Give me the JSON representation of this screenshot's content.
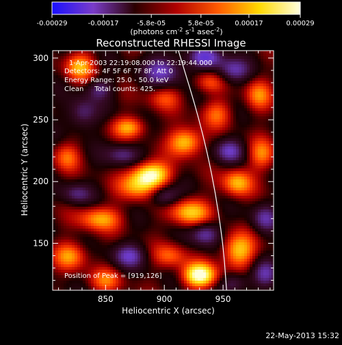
{
  "colorbar": {
    "tick_labels": [
      "-0.00029",
      "-0.00017",
      "-5.8e-05",
      "5.8e-05",
      "0.00017",
      "0.00029"
    ],
    "tick_values": [
      -0.00029,
      -0.00017,
      -5.8e-05,
      5.8e-05,
      0.00017,
      0.00029
    ],
    "range": [
      -0.00029,
      0.00029
    ],
    "units_prefix": "(photons cm",
    "units_sup1": "-2",
    "units_mid": " s",
    "units_sup2": "-1",
    "units_mid2": " asec",
    "units_sup3": "-2",
    "units_suffix": ")",
    "colors": [
      "#1a10ff",
      "#7a3cc8",
      "#2a0000",
      "#b00000",
      "#ff5a00",
      "#ffd800",
      "#ffffe0"
    ]
  },
  "annotations": {
    "line1": "1-Apr-2003 22:19:08.000 to 22:19:44.000",
    "line2": "Detectors: 4F 5F 6F 7F 8F, Att 0",
    "line3": "Energy Range: 25.0 - 50.0 keV",
    "line4": "Clean     Total counts: 425.",
    "peak": "Position of Peak = [919,126]"
  },
  "footer": {
    "timestamp": "22-May-2013 15:32"
  },
  "chart_data": {
    "type": "heatmap",
    "title": "Reconstructed RHESSI Image",
    "xlabel": "Heliocentric X (arcsec)",
    "ylabel": "Heliocentric Y (arcsec)",
    "xlim": [
      805,
      993
    ],
    "ylim": [
      112,
      306
    ],
    "x_ticks": [
      850,
      900,
      950
    ],
    "y_ticks": [
      150,
      200,
      250,
      300
    ],
    "peak_position": [
      919,
      126
    ],
    "limb_curve": [
      [
        912,
        306
      ],
      [
        930,
        250
      ],
      [
        942,
        200
      ],
      [
        950,
        150
      ],
      [
        953,
        112
      ]
    ],
    "blobs": [
      {
        "x": 889,
        "y": 206,
        "v": 0.85,
        "sx": 11,
        "sy": 7
      },
      {
        "x": 878,
        "y": 196,
        "v": 0.55,
        "sx": 12,
        "sy": 8
      },
      {
        "x": 918,
        "y": 232,
        "v": 0.7,
        "sx": 10,
        "sy": 8
      },
      {
        "x": 930,
        "y": 124,
        "v": 0.95,
        "sx": 10,
        "sy": 7
      },
      {
        "x": 922,
        "y": 175,
        "v": 0.65,
        "sx": 12,
        "sy": 8
      },
      {
        "x": 962,
        "y": 199,
        "v": 0.6,
        "sx": 9,
        "sy": 8
      },
      {
        "x": 963,
        "y": 144,
        "v": 0.65,
        "sx": 10,
        "sy": 10
      },
      {
        "x": 845,
        "y": 170,
        "v": 0.55,
        "sx": 13,
        "sy": 7
      },
      {
        "x": 820,
        "y": 140,
        "v": 0.5,
        "sx": 10,
        "sy": 8
      },
      {
        "x": 870,
        "y": 244,
        "v": 0.55,
        "sx": 10,
        "sy": 6
      },
      {
        "x": 828,
        "y": 293,
        "v": 0.55,
        "sx": 9,
        "sy": 8
      },
      {
        "x": 945,
        "y": 255,
        "v": 0.4,
        "sx": 9,
        "sy": 8
      },
      {
        "x": 980,
        "y": 270,
        "v": 0.45,
        "sx": 8,
        "sy": 9
      },
      {
        "x": 938,
        "y": 280,
        "v": 0.35,
        "sx": 9,
        "sy": 6
      },
      {
        "x": 850,
        "y": 120,
        "v": 0.4,
        "sx": 10,
        "sy": 7
      },
      {
        "x": 905,
        "y": 140,
        "v": 0.4,
        "sx": 10,
        "sy": 7
      },
      {
        "x": 983,
        "y": 222,
        "v": 0.45,
        "sx": 8,
        "sy": 9
      },
      {
        "x": 817,
        "y": 220,
        "v": 0.4,
        "sx": 8,
        "sy": 8
      },
      {
        "x": 900,
        "y": 268,
        "v": 0.35,
        "sx": 10,
        "sy": 7
      },
      {
        "x": 900,
        "y": 290,
        "v": -0.5,
        "sx": 12,
        "sy": 9
      },
      {
        "x": 935,
        "y": 300,
        "v": -0.55,
        "sx": 10,
        "sy": 6
      },
      {
        "x": 958,
        "y": 290,
        "v": -0.45,
        "sx": 10,
        "sy": 7
      },
      {
        "x": 830,
        "y": 255,
        "v": -0.4,
        "sx": 9,
        "sy": 9
      },
      {
        "x": 865,
        "y": 222,
        "v": -0.4,
        "sx": 10,
        "sy": 6
      },
      {
        "x": 955,
        "y": 225,
        "v": -0.45,
        "sx": 9,
        "sy": 7
      },
      {
        "x": 900,
        "y": 188,
        "v": -0.45,
        "sx": 9,
        "sy": 6
      },
      {
        "x": 935,
        "y": 158,
        "v": -0.5,
        "sx": 9,
        "sy": 7
      },
      {
        "x": 870,
        "y": 140,
        "v": -0.45,
        "sx": 10,
        "sy": 7
      },
      {
        "x": 825,
        "y": 190,
        "v": -0.35,
        "sx": 9,
        "sy": 6
      },
      {
        "x": 985,
        "y": 170,
        "v": -0.4,
        "sx": 8,
        "sy": 8
      },
      {
        "x": 985,
        "y": 125,
        "v": -0.4,
        "sx": 8,
        "sy": 8
      },
      {
        "x": 845,
        "y": 275,
        "v": -0.35,
        "sx": 8,
        "sy": 6
      },
      {
        "x": 960,
        "y": 118,
        "v": -0.35,
        "sx": 9,
        "sy": 6
      }
    ]
  }
}
